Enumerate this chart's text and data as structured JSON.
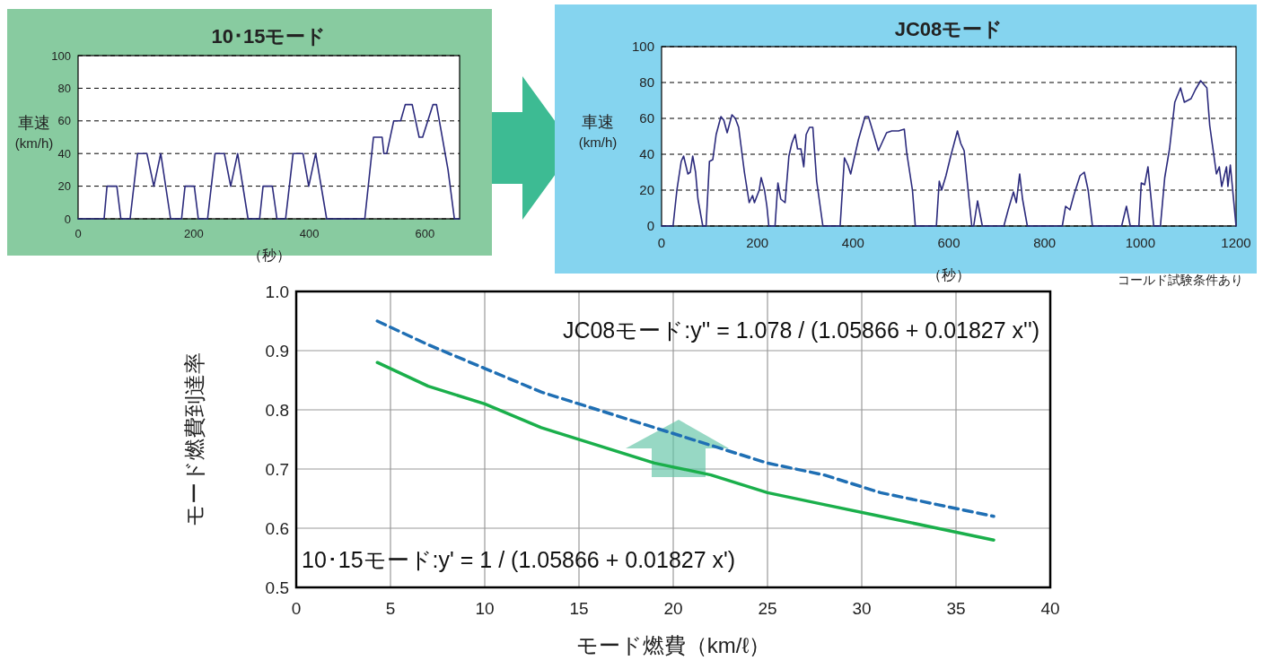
{
  "chart_data": [
    {
      "type": "line",
      "title": "10･15モード",
      "xlabel": "（秒）",
      "ylabel": "車速 (km/h)",
      "xlim": [
        0,
        660
      ],
      "ylim": [
        0,
        100
      ],
      "xticks": [
        0,
        200,
        400,
        600
      ],
      "yticks": [
        0,
        20,
        40,
        60,
        80,
        100
      ],
      "grid": "y",
      "marker": "none",
      "line_style": "solid",
      "series": [
        {
          "color": "#2b2a7c",
          "x": [
            0,
            45,
            50,
            67,
            74,
            90,
            103,
            119,
            131,
            143,
            160,
            179,
            185,
            201,
            208,
            224,
            237,
            253,
            264,
            276,
            294,
            314,
            320,
            336,
            344,
            359,
            372,
            389,
            399,
            411,
            430,
            496,
            511,
            526,
            529,
            534,
            546,
            558,
            566,
            578,
            590,
            596,
            614,
            620,
            640,
            651,
            660
          ],
          "values": [
            0,
            0,
            20,
            20,
            0,
            0,
            40,
            40,
            20,
            40,
            0,
            0,
            20,
            20,
            0,
            0,
            40,
            40,
            20,
            40,
            0,
            0,
            20,
            20,
            0,
            0,
            40,
            40,
            20,
            40,
            0,
            0,
            50,
            50,
            40,
            40,
            60,
            60,
            70,
            70,
            50,
            50,
            70,
            70,
            30,
            0,
            0
          ]
        }
      ]
    },
    {
      "type": "line",
      "title": "JC08モード",
      "xlabel": "（秒）",
      "ylabel": "車速 (km/h)",
      "annotations": [
        "コールド試験条件あり"
      ],
      "xlim": [
        0,
        1200
      ],
      "ylim": [
        0,
        100
      ],
      "xticks": [
        0,
        200,
        400,
        600,
        800,
        1000,
        1200
      ],
      "yticks": [
        0,
        20,
        40,
        60,
        80,
        100
      ],
      "grid": "y",
      "marker": "none",
      "line_style": "solid",
      "series": [
        {
          "color": "#2b2a7c",
          "x": [
            0,
            24,
            32,
            41,
            46,
            55,
            60,
            65,
            71,
            76,
            86,
            93,
            100,
            107,
            114,
            124,
            130,
            137,
            147,
            154,
            161,
            173,
            183,
            190,
            194,
            204,
            208,
            215,
            220,
            224,
            237,
            243,
            249,
            258,
            266,
            272,
            279,
            284,
            291,
            297,
            302,
            309,
            316,
            324,
            337,
            373,
            382,
            389,
            395,
            411,
            425,
            432,
            441,
            453,
            470,
            481,
            495,
            507,
            512,
            524,
            530,
            574,
            580,
            585,
            594,
            604,
            618,
            625,
            632,
            641,
            648,
            652,
            660,
            670,
            715,
            724,
            735,
            741,
            748,
            754,
            764,
            837,
            844,
            853,
            861,
            874,
            883,
            891,
            900,
            961,
            971,
            979,
            997,
            1002,
            1009,
            1016,
            1028,
            1042,
            1051,
            1061,
            1072,
            1084,
            1092,
            1106,
            1115,
            1126,
            1139,
            1145,
            1159,
            1165,
            1170,
            1180,
            1183,
            1188,
            1200
          ],
          "values": [
            0,
            0,
            20,
            36,
            39,
            29,
            30,
            39,
            30,
            15,
            0,
            0,
            36,
            37,
            51,
            61,
            59,
            52,
            62,
            60,
            55,
            30,
            13,
            17,
            13,
            20,
            27,
            20,
            11,
            0,
            0,
            24,
            15,
            13,
            39,
            46,
            51,
            43,
            43,
            33,
            51,
            55,
            55,
            25,
            0,
            0,
            38,
            34,
            29,
            48,
            61,
            61,
            53,
            42,
            52,
            53,
            53,
            54,
            41,
            20,
            0,
            0,
            25,
            20,
            28,
            39,
            53,
            46,
            42,
            18,
            0,
            0,
            14,
            0,
            0,
            9,
            19,
            13,
            29,
            15,
            0,
            0,
            11,
            9,
            17,
            28,
            30,
            20,
            0,
            0,
            11,
            0,
            0,
            24,
            23,
            33,
            0,
            0,
            27,
            43,
            69,
            77,
            69,
            71,
            76,
            81,
            77,
            56,
            29,
            33,
            22,
            33,
            22,
            34,
            0
          ]
        }
      ]
    },
    {
      "type": "line",
      "xlabel": "モード燃費（km/ℓ）",
      "ylabel": "モード燃費到達率",
      "xlim": [
        0,
        40
      ],
      "ylim": [
        0.5,
        1.0
      ],
      "xticks": [
        0,
        5,
        10,
        15,
        20,
        25,
        30,
        35,
        40
      ],
      "yticks": [
        {
          "value": 0.5,
          "label": "0.5"
        },
        {
          "value": 0.6,
          "label": "0.6"
        },
        {
          "value": 0.7,
          "label": "0.7"
        },
        {
          "value": 0.8,
          "label": "0.8"
        },
        {
          "value": 0.9,
          "label": "0.9"
        },
        {
          "value": 1.0,
          "label": "1.0"
        }
      ],
      "grid": true,
      "marker": "none",
      "series": [
        {
          "name": "JC08モード:y'' = 1.078 / (1.05866 + 0.01827 x'')",
          "color": "#1f6fb4",
          "line_style": "dashed",
          "x": [
            4.3,
            7,
            10,
            13,
            16,
            19,
            22,
            25,
            28,
            31,
            34,
            37
          ],
          "values": [
            0.95,
            0.91,
            0.87,
            0.83,
            0.8,
            0.77,
            0.74,
            0.71,
            0.69,
            0.66,
            0.64,
            0.62
          ]
        },
        {
          "name": "10･15モード:y' = 1 / (1.05866 + 0.01827 x')",
          "color": "#1aaf4b",
          "line_style": "solid",
          "x": [
            4.3,
            7,
            10,
            13,
            16,
            19,
            22,
            25,
            28,
            31,
            34,
            37
          ],
          "values": [
            0.88,
            0.84,
            0.81,
            0.77,
            0.74,
            0.71,
            0.69,
            0.66,
            0.64,
            0.62,
            0.6,
            0.58
          ]
        }
      ]
    }
  ]
}
